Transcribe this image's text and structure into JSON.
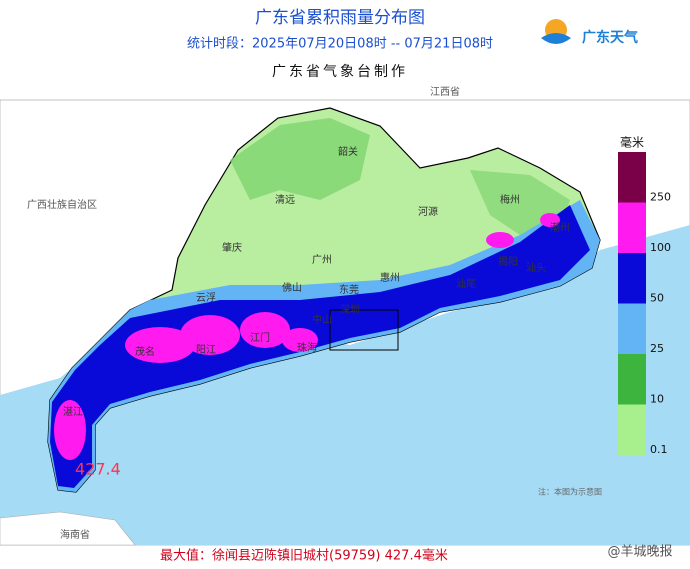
{
  "header": {
    "title": "广东省累积雨量分布图",
    "period": "统计时段：2025年07月20日08时  --  07月21日08时",
    "producer": "广东省气象台制作",
    "logo": "广东天气"
  },
  "legend": {
    "unit": "毫米",
    "items": [
      {
        "value": 250,
        "color": "#7a0048"
      },
      {
        "value": 100,
        "color": "#ff1af0"
      },
      {
        "value": 50,
        "color": "#0a0ad8"
      },
      {
        "value": 25,
        "color": "#62b4f4"
      },
      {
        "value": 10,
        "color": "#3db43d"
      },
      {
        "value": 0.1,
        "color": "#a8f08e"
      }
    ]
  },
  "regions": [
    "江西省",
    "广西壮族自治区",
    "海南省"
  ],
  "cities": [
    "韶关",
    "清远",
    "河源",
    "梅州",
    "潮州",
    "揭阳",
    "汕头",
    "汕尾",
    "惠州",
    "广州",
    "佛山",
    "东莞",
    "深圳",
    "肇庆",
    "云浮",
    "江门",
    "中山",
    "珠海",
    "阳江",
    "茂名",
    "湛江"
  ],
  "max_marker": 427.4,
  "note": "注：本图为示意图",
  "footer": "最大值：徐闻县迈陈镇旧城村(59759) 427.4毫米",
  "watermark": "@羊城晚报"
}
